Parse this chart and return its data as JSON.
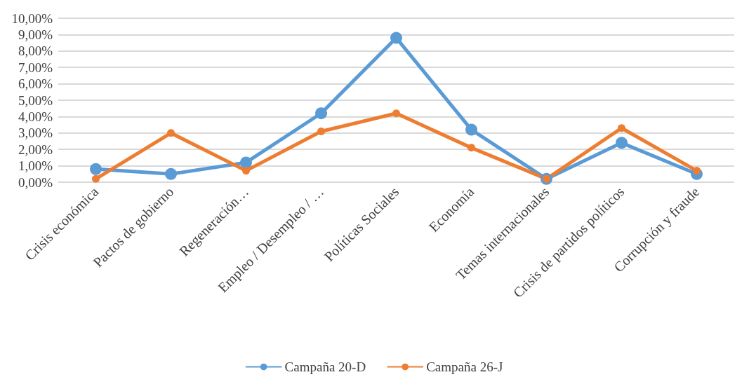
{
  "chart_data": {
    "type": "line",
    "categories": [
      "Crisis económica",
      "Pactos de gobierno",
      "Regeneración…",
      "Empleo / Desempleo / …",
      "Políticas Sociales",
      "Economía",
      "Temas internacionales",
      "Crisis de partidos políticos",
      "Corrupción y fraude"
    ],
    "series": [
      {
        "name": "Campaña 20-D",
        "color": "#5b9bd5",
        "values": [
          0.8,
          0.5,
          1.2,
          4.2,
          8.8,
          3.2,
          0.2,
          2.4,
          0.5
        ]
      },
      {
        "name": "Campaña 26-J",
        "color": "#ed7d31",
        "values": [
          0.2,
          3.0,
          0.7,
          3.1,
          4.2,
          2.1,
          0.2,
          3.3,
          0.7
        ]
      }
    ],
    "ylim": [
      0,
      10
    ],
    "yticks": [
      {
        "value": 0,
        "label": "0,00%"
      },
      {
        "value": 1,
        "label": "1,00%"
      },
      {
        "value": 2,
        "label": "2,00%"
      },
      {
        "value": 3,
        "label": "3,00%"
      },
      {
        "value": 4,
        "label": "4,00%"
      },
      {
        "value": 5,
        "label": "5,00%"
      },
      {
        "value": 6,
        "label": "6,00%"
      },
      {
        "value": 7,
        "label": "7,00%"
      },
      {
        "value": 8,
        "label": "8,00%"
      },
      {
        "value": 9,
        "label": "9,00%"
      },
      {
        "value": 10,
        "label": "10,00%"
      }
    ],
    "grid": "y",
    "legend": "bottom",
    "marker": "circle",
    "line_style": "solid"
  }
}
